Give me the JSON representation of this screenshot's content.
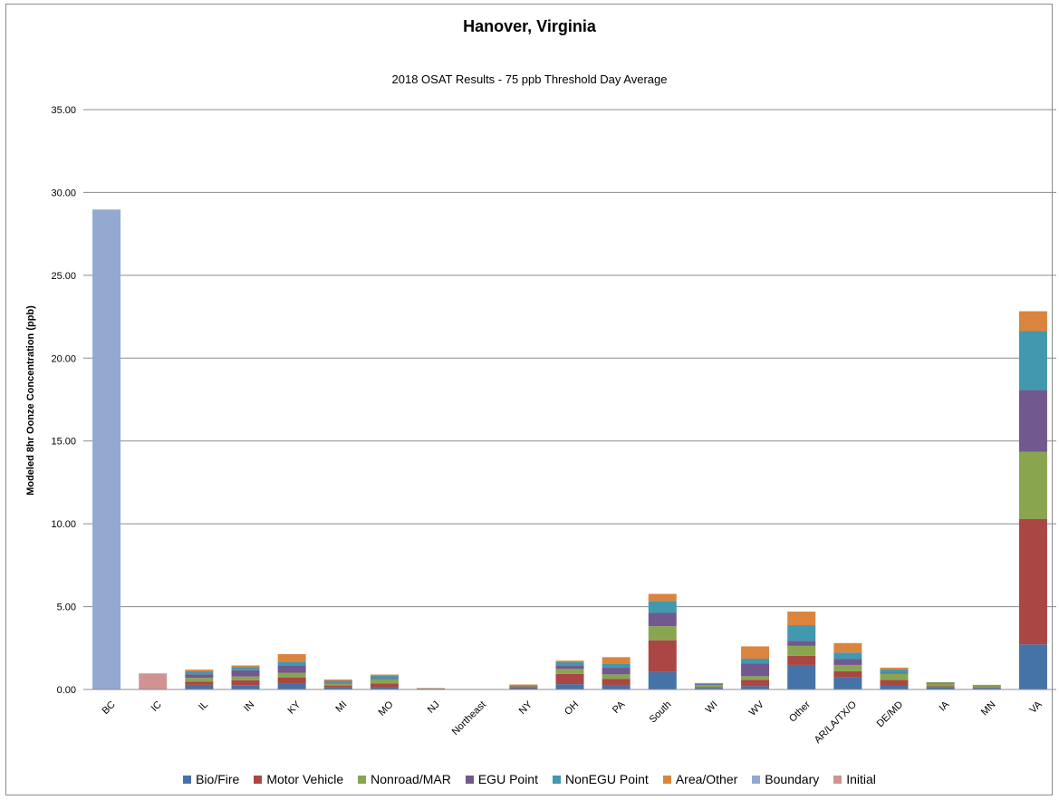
{
  "chart_data": {
    "type": "bar",
    "stacked": true,
    "title": "Hanover, Virginia",
    "subtitle": "2018 OSAT Results - 75 ppb Threshold Day Average",
    "ylabel": "Modeled 8hr Oonze Concentration (ppb)",
    "xlabel": "",
    "ylim": [
      0,
      35
    ],
    "yticks": [
      "0.00",
      "5.00",
      "10.00",
      "15.00",
      "20.00",
      "25.00",
      "30.00",
      "35.00"
    ],
    "grid": "horizontal",
    "legend_position": "bottom",
    "categories": [
      "BC",
      "IC",
      "IL",
      "IN",
      "KY",
      "MI",
      "MO",
      "NJ",
      "Northeast",
      "NY",
      "OH",
      "PA",
      "South",
      "WI",
      "WV",
      "Other",
      "AR/LA/TX/O",
      "DE/MD",
      "IA",
      "MN",
      "VA"
    ],
    "series": [
      {
        "name": "Bio/Fire",
        "color": "#4572a7",
        "values": [
          0,
          0,
          0.28,
          0.26,
          0.35,
          0.12,
          0.14,
          0.02,
          0,
          0.08,
          0.32,
          0.25,
          1.05,
          0.1,
          0.2,
          1.48,
          0.72,
          0.22,
          0.15,
          0.1,
          2.72
        ]
      },
      {
        "name": "Motor Vehicle",
        "color": "#aa4643",
        "values": [
          0,
          0,
          0.2,
          0.3,
          0.38,
          0.12,
          0.22,
          0.02,
          0,
          0.06,
          0.62,
          0.38,
          1.92,
          0.05,
          0.38,
          0.55,
          0.38,
          0.35,
          0.04,
          0.03,
          7.58
        ]
      },
      {
        "name": "Nonroad/MAR",
        "color": "#89a54e",
        "values": [
          0,
          0,
          0.22,
          0.22,
          0.28,
          0.12,
          0.26,
          0.01,
          0,
          0.06,
          0.3,
          0.28,
          0.85,
          0.12,
          0.22,
          0.6,
          0.38,
          0.38,
          0.14,
          0.09,
          4.05
        ]
      },
      {
        "name": "EGU Point",
        "color": "#71588f",
        "values": [
          0,
          0,
          0.22,
          0.38,
          0.45,
          0.06,
          0.06,
          0.01,
          0,
          0.02,
          0.18,
          0.4,
          0.8,
          0.03,
          0.78,
          0.3,
          0.35,
          0.06,
          0.04,
          0.02,
          3.72
        ]
      },
      {
        "name": "NonEGU Point",
        "color": "#4198af",
        "values": [
          0,
          0,
          0.18,
          0.2,
          0.22,
          0.1,
          0.14,
          0.01,
          0,
          0.03,
          0.22,
          0.26,
          0.72,
          0.06,
          0.28,
          0.95,
          0.4,
          0.2,
          0.05,
          0.02,
          3.56
        ]
      },
      {
        "name": "Area/Other",
        "color": "#db843d",
        "values": [
          0,
          0,
          0.1,
          0.09,
          0.45,
          0.08,
          0.08,
          0.01,
          0,
          0.05,
          0.1,
          0.38,
          0.43,
          0.03,
          0.74,
          0.82,
          0.57,
          0.11,
          0.02,
          0.02,
          1.2
        ]
      },
      {
        "name": "Boundary",
        "color": "#93a9cf",
        "values": [
          28.97,
          0,
          0,
          0,
          0,
          0,
          0,
          0,
          0,
          0,
          0,
          0,
          0,
          0,
          0,
          0,
          0,
          0,
          0,
          0,
          0
        ]
      },
      {
        "name": "Initial",
        "color": "#d19392",
        "values": [
          0,
          0.97,
          0,
          0,
          0,
          0,
          0,
          0,
          0,
          0,
          0,
          0,
          0,
          0,
          0,
          0,
          0,
          0,
          0,
          0,
          0
        ]
      }
    ]
  }
}
